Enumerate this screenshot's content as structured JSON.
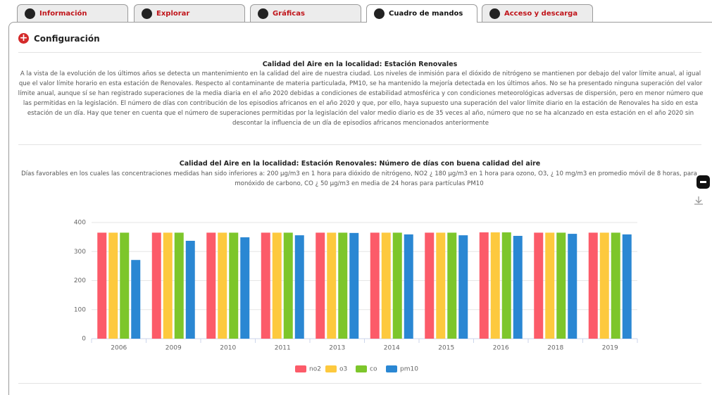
{
  "tabs": [
    "Información",
    "Explorar",
    "Gráficas",
    "Cuadro de mandos",
    "Acceso y descarga"
  ],
  "active_tab": 3,
  "config": {
    "title": "Configuración"
  },
  "report": {
    "title": "Calidad del Aire en la localidad: Estación Renovales",
    "text": "A la vista de la evolución de los últimos años se detecta un mantenimiento en la calidad del aire de nuestra ciudad. Los niveles de inmisión para el dióxido de nitrógeno se mantienen por debajo del valor límite anual, al igual que el valor límite horario en esta estación de Renovales. Respecto al contaminante de materia particulada, PM10, se ha mantenido la mejoría detectada en los últimos años. No se ha presentado ninguna superación del valor límite anual, aunque sí se han registrado superaciones de la media diaria en el año 2020 debidas a condiciones de estabilidad atmosférica y con condiciones meteorológicas adversas de dispersión, pero en menor número que las permitidas en la legislación. El número de días con contribución de los episodios africanos en el año 2020 y que, por ello, haya supuesto una superación del valor límite diario en la estación de Renovales ha sido en esta estación de un día. Hay que tener en cuenta que el número de superaciones permitidas por la legislación del valor medio diario es de 35 veces al año, número que no se ha alcanzado en esta estación en el año 2020 sin descontar la influencia de un día de episodios africanos mencionados anteriormente"
  },
  "chart_data": {
    "type": "bar",
    "title": "Calidad del Aire en la localidad: Estación Renovales: Número de días con buena calidad del aire",
    "subtitle": "Días favorables en los cuales las concentraciones medidas han sido inferiores a: 200 µg/m3 en 1 hora para dióxido de nitrógeno, NO2 ¿ 180 µg/m3 en 1 hora para ozono, O3, ¿ 10 mg/m3 en promedio móvil de 8 horas, para monóxido de carbono, CO ¿ 50 µg/m3 en media de 24 horas para partículas PM10",
    "categories": [
      "2006",
      "2009",
      "2010",
      "2011",
      "2013",
      "2014",
      "2015",
      "2016",
      "2018",
      "2019"
    ],
    "series": [
      {
        "name": "no2",
        "color": "#fc5b69",
        "values": [
          365,
          365,
          365,
          365,
          365,
          365,
          365,
          366,
          365,
          365
        ]
      },
      {
        "name": "o3",
        "color": "#fdc93e",
        "values": [
          365,
          365,
          365,
          365,
          365,
          365,
          365,
          366,
          365,
          365
        ]
      },
      {
        "name": "co",
        "color": "#7dc62b",
        "values": [
          365,
          365,
          365,
          365,
          365,
          365,
          365,
          366,
          365,
          365
        ]
      },
      {
        "name": "pm10",
        "color": "#2a87d3",
        "values": [
          271,
          337,
          349,
          356,
          364,
          359,
          356,
          354,
          361,
          359
        ]
      }
    ],
    "ylim": [
      0,
      400
    ],
    "yticks": [
      0,
      100,
      200,
      300,
      400
    ],
    "grid": true,
    "legend": "bottom"
  }
}
